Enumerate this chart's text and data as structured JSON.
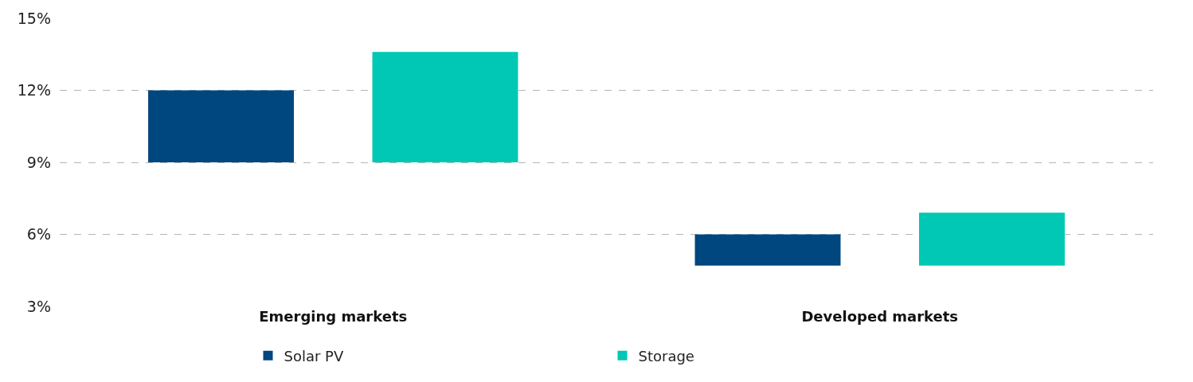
{
  "chart_data": {
    "type": "bar",
    "categories": [
      "Emerging markets",
      "Developed markets"
    ],
    "series": [
      {
        "name": "Solar PV",
        "color": "#00467f",
        "values": [
          3,
          1.3
        ],
        "base": [
          9,
          4.7
        ]
      },
      {
        "name": "Storage",
        "color": "#00c8b4",
        "values": [
          4.6,
          2.2
        ],
        "base": [
          9,
          4.7
        ]
      }
    ],
    "ylim": [
      3,
      15
    ],
    "yticks": [
      {
        "value": 3,
        "label": "3%"
      },
      {
        "value": 6,
        "label": "6%"
      },
      {
        "value": 9,
        "label": "9%"
      },
      {
        "value": 12,
        "label": "12%"
      },
      {
        "value": 15,
        "label": "15%"
      }
    ],
    "grid": "y",
    "legend": "bottom"
  }
}
